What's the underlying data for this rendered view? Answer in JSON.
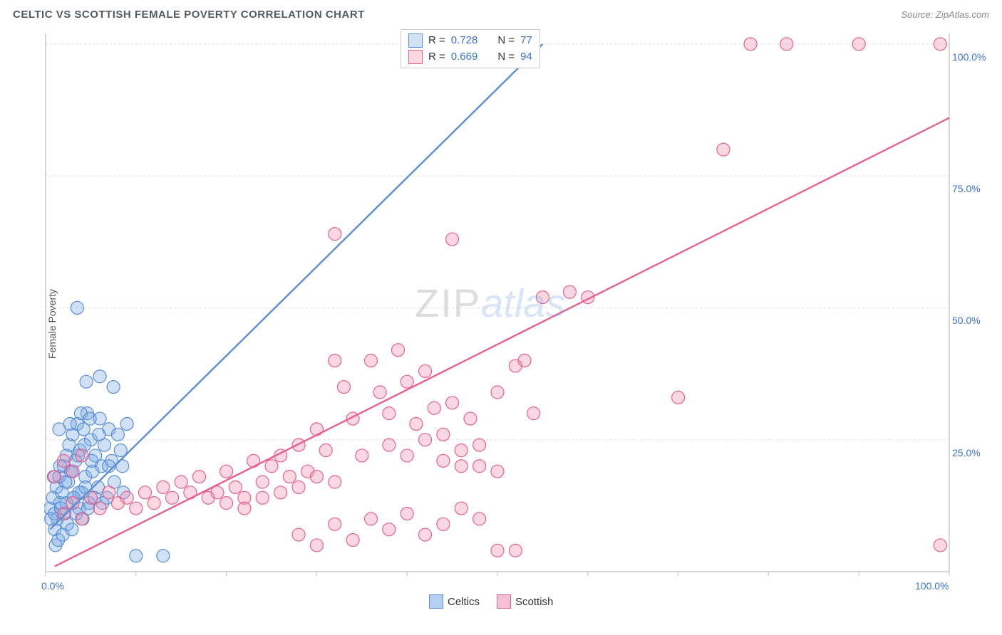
{
  "title": "CELTIC VS SCOTTISH FEMALE POVERTY CORRELATION CHART",
  "source_label": "Source: ZipAtlas.com",
  "ylabel": "Female Poverty",
  "watermark": {
    "left": "ZIP",
    "right": "atlas"
  },
  "chart": {
    "type": "scatter",
    "xlim": [
      0,
      100
    ],
    "ylim": [
      0,
      102
    ],
    "x_ticks": [
      0,
      10,
      20,
      30,
      40,
      50,
      60,
      70,
      80,
      90,
      100
    ],
    "y_gridlines": [
      0,
      25,
      50,
      75,
      100
    ],
    "x_tick_labels": {
      "0": "0.0%",
      "100": "100.0%"
    },
    "y_tick_labels": {
      "25": "25.0%",
      "50": "50.0%",
      "75": "75.0%",
      "100": "100.0%"
    },
    "background_color": "#ffffff",
    "grid_color": "#dcdcdc",
    "axis_color": "#bfbfbf",
    "marker_radius": 9,
    "marker_stroke_width": 1.2,
    "line_width": 2.4,
    "series": [
      {
        "name": "Celtics",
        "fill": "rgba(120,170,230,0.35)",
        "stroke": "#5a8fd6",
        "R": "0.728",
        "N": "77",
        "trend": {
          "x1": 0.5,
          "y1": 8,
          "x2": 55,
          "y2": 100
        },
        "points": [
          [
            0.5,
            12
          ],
          [
            0.8,
            14
          ],
          [
            1.0,
            8
          ],
          [
            1.2,
            16
          ],
          [
            1.3,
            10
          ],
          [
            1.5,
            18
          ],
          [
            1.6,
            13
          ],
          [
            1.8,
            15
          ],
          [
            2.0,
            20
          ],
          [
            2.1,
            11
          ],
          [
            2.3,
            22
          ],
          [
            2.5,
            17
          ],
          [
            2.6,
            24
          ],
          [
            2.8,
            19
          ],
          [
            3.0,
            26
          ],
          [
            3.1,
            14
          ],
          [
            3.3,
            21
          ],
          [
            3.5,
            28
          ],
          [
            3.7,
            12
          ],
          [
            3.8,
            23
          ],
          [
            4.0,
            15
          ],
          [
            4.2,
            27
          ],
          [
            4.4,
            18
          ],
          [
            4.6,
            30
          ],
          [
            4.8,
            13
          ],
          [
            5.0,
            25
          ],
          [
            5.2,
            19
          ],
          [
            5.5,
            22
          ],
          [
            5.8,
            16
          ],
          [
            6.0,
            29
          ],
          [
            6.2,
            20
          ],
          [
            6.5,
            24
          ],
          [
            6.8,
            14
          ],
          [
            7.0,
            27
          ],
          [
            7.3,
            21
          ],
          [
            7.6,
            17
          ],
          [
            8.0,
            26
          ],
          [
            8.3,
            23
          ],
          [
            8.6,
            15
          ],
          [
            9.0,
            28
          ],
          [
            1.1,
            5
          ],
          [
            1.4,
            6
          ],
          [
            1.9,
            7
          ],
          [
            2.4,
            9
          ],
          [
            2.9,
            8
          ],
          [
            3.4,
            11
          ],
          [
            4.1,
            10
          ],
          [
            4.7,
            12
          ],
          [
            5.4,
            14
          ],
          [
            6.3,
            13
          ],
          [
            0.9,
            18
          ],
          [
            1.6,
            20
          ],
          [
            2.2,
            17
          ],
          [
            3.0,
            19
          ],
          [
            3.6,
            22
          ],
          [
            4.3,
            24
          ],
          [
            5.1,
            21
          ],
          [
            5.9,
            26
          ],
          [
            7.0,
            20
          ],
          [
            8.5,
            20
          ],
          [
            10.0,
            3
          ],
          [
            13.0,
            3
          ],
          [
            3.5,
            50
          ],
          [
            6.0,
            37
          ],
          [
            7.5,
            35
          ],
          [
            4.5,
            36
          ],
          [
            1.5,
            27
          ],
          [
            2.7,
            28
          ],
          [
            3.9,
            30
          ],
          [
            4.9,
            29
          ],
          [
            0.6,
            10
          ],
          [
            1.0,
            11
          ],
          [
            1.7,
            12
          ],
          [
            2.3,
            13
          ],
          [
            3.1,
            14
          ],
          [
            3.7,
            15
          ],
          [
            4.4,
            16
          ]
        ]
      },
      {
        "name": "Scottish",
        "fill": "rgba(240,140,170,0.35)",
        "stroke": "#e5628f",
        "R": "0.669",
        "N": "94",
        "trend": {
          "x1": 1,
          "y1": 1,
          "x2": 100,
          "y2": 86
        },
        "points": [
          [
            2,
            11
          ],
          [
            3,
            13
          ],
          [
            4,
            10
          ],
          [
            5,
            14
          ],
          [
            6,
            12
          ],
          [
            7,
            15
          ],
          [
            8,
            13
          ],
          [
            9,
            14
          ],
          [
            10,
            12
          ],
          [
            11,
            15
          ],
          [
            12,
            13
          ],
          [
            13,
            16
          ],
          [
            14,
            14
          ],
          [
            15,
            17
          ],
          [
            16,
            15
          ],
          [
            17,
            18
          ],
          [
            18,
            14
          ],
          [
            19,
            15
          ],
          [
            20,
            19
          ],
          [
            21,
            16
          ],
          [
            22,
            14
          ],
          [
            23,
            21
          ],
          [
            24,
            17
          ],
          [
            25,
            20
          ],
          [
            26,
            22
          ],
          [
            27,
            18
          ],
          [
            28,
            24
          ],
          [
            29,
            19
          ],
          [
            30,
            27
          ],
          [
            31,
            23
          ],
          [
            32,
            40
          ],
          [
            33,
            35
          ],
          [
            34,
            29
          ],
          [
            35,
            22
          ],
          [
            36,
            40
          ],
          [
            37,
            34
          ],
          [
            38,
            30
          ],
          [
            39,
            42
          ],
          [
            40,
            36
          ],
          [
            41,
            28
          ],
          [
            42,
            38
          ],
          [
            43,
            31
          ],
          [
            44,
            26
          ],
          [
            45,
            32
          ],
          [
            46,
            20
          ],
          [
            47,
            29
          ],
          [
            48,
            24
          ],
          [
            50,
            34
          ],
          [
            52,
            39
          ],
          [
            54,
            30
          ],
          [
            28,
            7
          ],
          [
            30,
            5
          ],
          [
            32,
            9
          ],
          [
            34,
            6
          ],
          [
            36,
            10
          ],
          [
            38,
            8
          ],
          [
            40,
            11
          ],
          [
            42,
            7
          ],
          [
            44,
            9
          ],
          [
            46,
            12
          ],
          [
            48,
            10
          ],
          [
            50,
            4
          ],
          [
            52,
            4
          ],
          [
            20,
            13
          ],
          [
            22,
            12
          ],
          [
            24,
            14
          ],
          [
            26,
            15
          ],
          [
            28,
            16
          ],
          [
            30,
            18
          ],
          [
            32,
            17
          ],
          [
            38,
            24
          ],
          [
            40,
            22
          ],
          [
            42,
            25
          ],
          [
            44,
            21
          ],
          [
            46,
            23
          ],
          [
            48,
            20
          ],
          [
            50,
            19
          ],
          [
            55,
            52
          ],
          [
            53,
            40
          ],
          [
            58,
            53
          ],
          [
            32,
            64
          ],
          [
            45,
            63
          ],
          [
            60,
            52
          ],
          [
            70,
            33
          ],
          [
            75,
            80
          ],
          [
            78,
            100
          ],
          [
            82,
            100
          ],
          [
            90,
            100
          ],
          [
            99,
            100
          ],
          [
            99,
            5
          ],
          [
            1,
            18
          ],
          [
            2,
            21
          ],
          [
            3,
            19
          ],
          [
            4,
            22
          ]
        ]
      }
    ]
  },
  "legend": {
    "r_label": "R =",
    "n_label": "N ="
  },
  "bottom_legend": {
    "items": [
      {
        "swatch_fill": "rgba(120,170,230,0.55)",
        "swatch_stroke": "#5a8fd6",
        "label": "Celtics"
      },
      {
        "swatch_fill": "rgba(240,140,170,0.55)",
        "swatch_stroke": "#e5628f",
        "label": "Scottish"
      }
    ]
  }
}
